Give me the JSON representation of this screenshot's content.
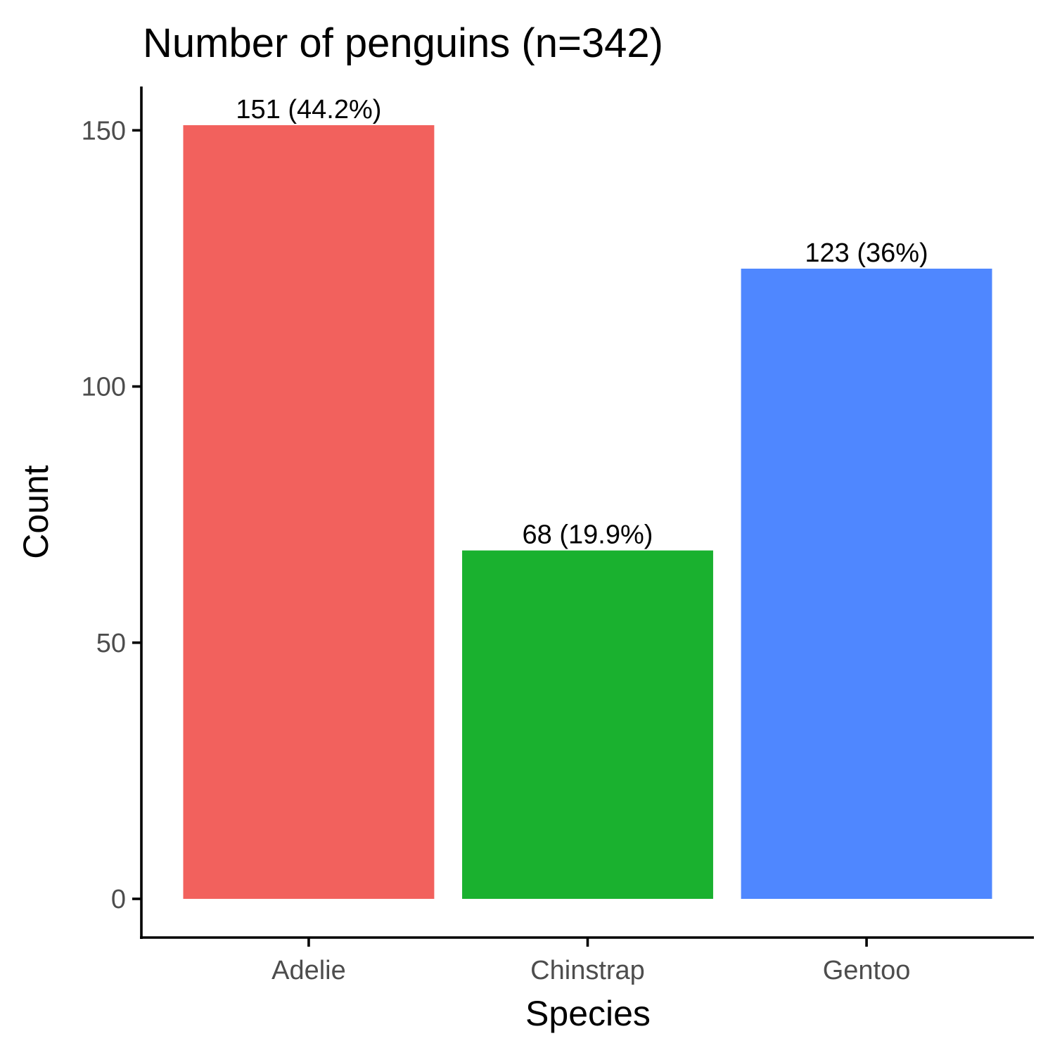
{
  "chart_data": {
    "type": "bar",
    "title": "Number of penguins (n=342)",
    "xlabel": "Species",
    "ylabel": "Count",
    "categories": [
      "Adelie",
      "Chinstrap",
      "Gentoo"
    ],
    "values": [
      151,
      68,
      123
    ],
    "data_labels": [
      "151 (44.2%)",
      "68 (19.9%)",
      "123 (36%)"
    ],
    "colors": [
      "#F2615D",
      "#1AB12F",
      "#4F87FF"
    ],
    "ylim": [
      -7.55,
      158.55
    ],
    "yticks": [
      0,
      50,
      100,
      150
    ],
    "ytick_labels": [
      "0",
      "50",
      "100",
      "150"
    ],
    "grid": false,
    "legend": "none"
  }
}
